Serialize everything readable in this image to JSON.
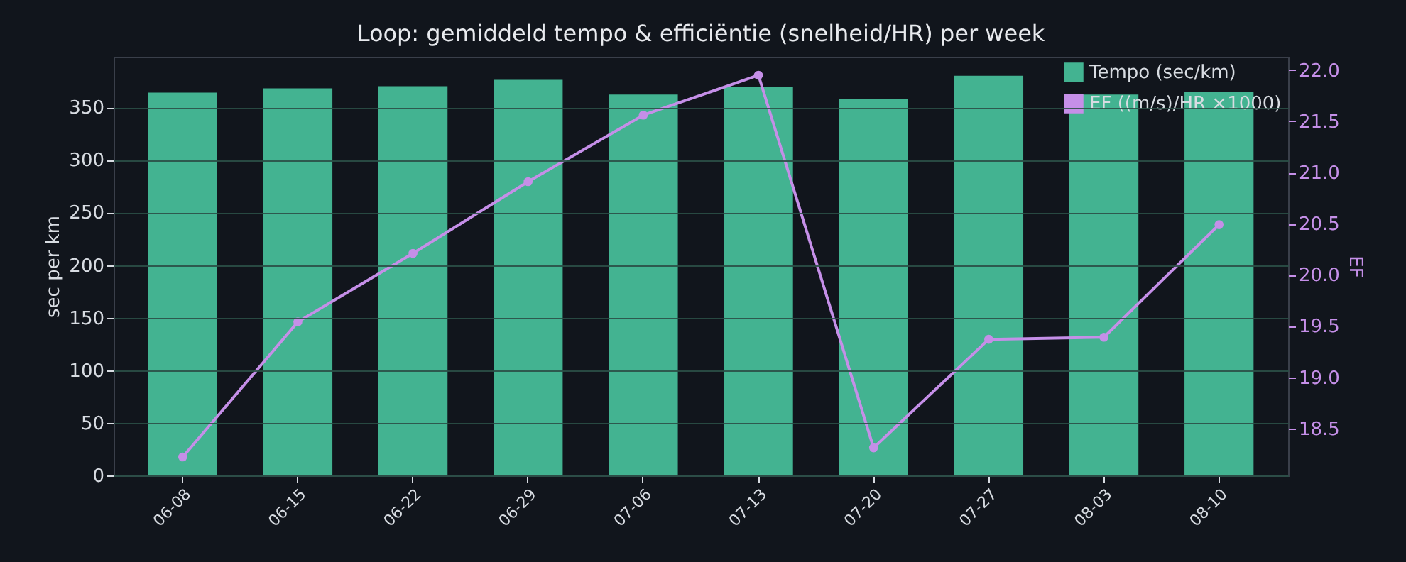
{
  "chart_data": {
    "type": "bar",
    "title": "Loop: gemiddeld tempo & efficiëntie (snelheid/HR) per week",
    "categories": [
      "06-08",
      "06-15",
      "06-22",
      "06-29",
      "07-06",
      "07-13",
      "07-20",
      "07-27",
      "08-03",
      "08-10"
    ],
    "ylabel": "sec per km",
    "y2label": "EF",
    "ylim": [
      0,
      398
    ],
    "yticks": [
      0,
      50,
      100,
      150,
      200,
      250,
      300,
      350
    ],
    "y2lim": [
      18.04,
      22.13
    ],
    "y2ticks": [
      18.5,
      {
        "value": 19,
        "label": "19.0"
      },
      19.5,
      {
        "value": 20,
        "label": "20.0"
      },
      20.5,
      {
        "value": 21,
        "label": "21.0"
      },
      21.5,
      {
        "value": 22,
        "label": "22.0"
      }
    ],
    "series": [
      {
        "name": "Tempo (sec/km)",
        "color": "#43b391",
        "values": [
          364,
          368,
          370,
          376,
          362,
          369,
          358,
          380,
          362,
          365
        ]
      },
      {
        "name": "EF ((m/s)/HR ×1000)",
        "type": "line",
        "axis": "y2",
        "color": "#c58fe8",
        "values": [
          18.22,
          19.54,
          20.21,
          20.91,
          21.56,
          21.95,
          18.31,
          19.37,
          19.39,
          20.49
        ]
      }
    ],
    "grid": "y",
    "legend": "top right",
    "marker": "circle",
    "line_style": "solid"
  }
}
